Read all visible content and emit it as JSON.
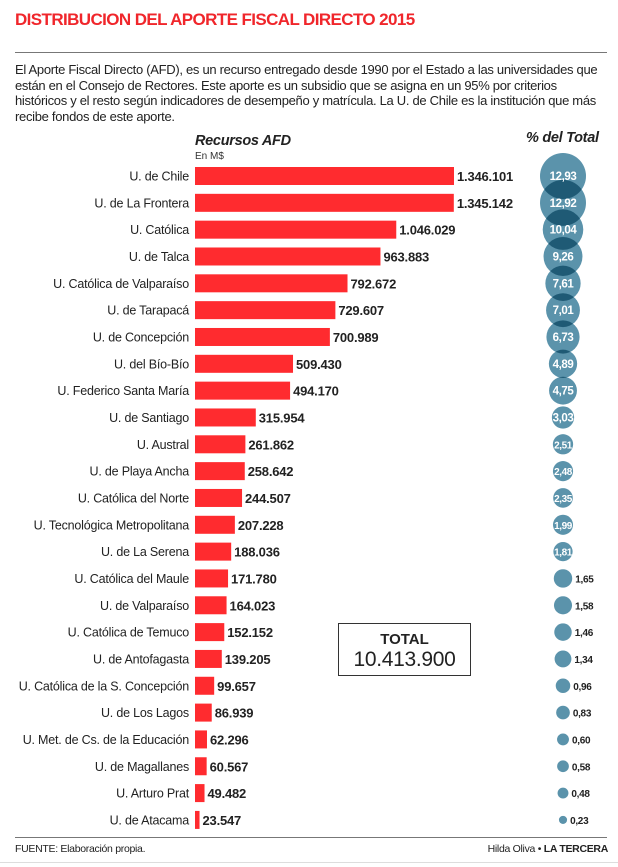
{
  "header": {
    "title": "DISTRIBUCION DEL APORTE FISCAL DIRECTO 2015",
    "intro": "El Aporte Fiscal Directo (AFD), es un recurso entregado desde 1990 por el Estado a las universidades que están en el Consejo de Rectores. Este aporte es un subsidio que se asigna en un 95% por criterios históricos y el resto según indicadores de desempeño y matrícula. La U. de Chile es la institución que más recibe fondos de este aporte."
  },
  "colors": {
    "bar": "#ff2b2f",
    "bubble": "#5b93ab",
    "bubble_overlap": "#1f5a75",
    "title": "#f0262b"
  },
  "total": {
    "label": "TOTAL",
    "value": "10.413.900"
  },
  "footer": {
    "source": "FUENTE: Elaboración propia.",
    "author": "Hilda Oliva",
    "separator": "•",
    "publisher": "LA TERCERA"
  },
  "chart_data": {
    "type": "bar",
    "title": "Recursos AFD",
    "subtitle": "En M$",
    "secondary_title": "% del Total",
    "categories": [
      "U. de Chile",
      "U. de La Frontera",
      "U. Católica",
      "U. de Talca",
      "U. Católica de Valparaíso",
      "U. de Tarapacá",
      "U. de Concepción",
      "U. del Bío-Bío",
      "U. Federico Santa María",
      "U. de Santiago",
      "U. Austral",
      "U. de Playa Ancha",
      "U. Católica del Norte",
      "U. Tecnológica Metropolitana",
      "U. de La Serena",
      "U. Católica del Maule",
      "U. de Valparaíso",
      "U. Católica de Temuco",
      "U. de Antofagasta",
      "U. Católica de la S. Concepción",
      "U. de Los Lagos",
      "U. Met. de Cs. de la Educación",
      "U. de Magallanes",
      "U. Arturo Prat",
      "U. de Atacama"
    ],
    "series": [
      {
        "name": "Recursos AFD (M$)",
        "type": "bar",
        "values": [
          1346101,
          1345142,
          1046029,
          963883,
          792672,
          729607,
          700989,
          509430,
          494170,
          315954,
          261862,
          258642,
          244507,
          207228,
          188036,
          171780,
          164023,
          152152,
          139205,
          99657,
          86939,
          62296,
          60567,
          49482,
          23547
        ],
        "labels": [
          "1.346.101",
          "1.345.142",
          "1.046.029",
          "963.883",
          "792.672",
          "729.607",
          "700.989",
          "509.430",
          "494.170",
          "315.954",
          "261.862",
          "258.642",
          "244.507",
          "207.228",
          "188.036",
          "171.780",
          "164.023",
          "152.152",
          "139.205",
          "99.657",
          "86.939",
          "62.296",
          "60.567",
          "49.482",
          "23.547"
        ]
      },
      {
        "name": "% del Total",
        "type": "bubble",
        "values": [
          12.93,
          12.92,
          10.04,
          9.26,
          7.61,
          7.01,
          6.73,
          4.89,
          4.75,
          3.03,
          2.51,
          2.48,
          2.35,
          1.99,
          1.81,
          1.65,
          1.58,
          1.46,
          1.34,
          0.96,
          0.83,
          0.6,
          0.58,
          0.48,
          0.23
        ],
        "labels": [
          "12,93",
          "12,92",
          "10,04",
          "9,26",
          "7,61",
          "7,01",
          "6,73",
          "4,89",
          "4,75",
          "3,03",
          "2,51",
          "2,48",
          "2,35",
          "1,99",
          "1,81",
          "1,65",
          "1,58",
          "1,46",
          "1,34",
          "0,96",
          "0,83",
          "0,60",
          "0,58",
          "0,48",
          "0,23"
        ]
      }
    ],
    "xlim": [
      0,
      1346101
    ],
    "grid": false,
    "legend": "none"
  }
}
